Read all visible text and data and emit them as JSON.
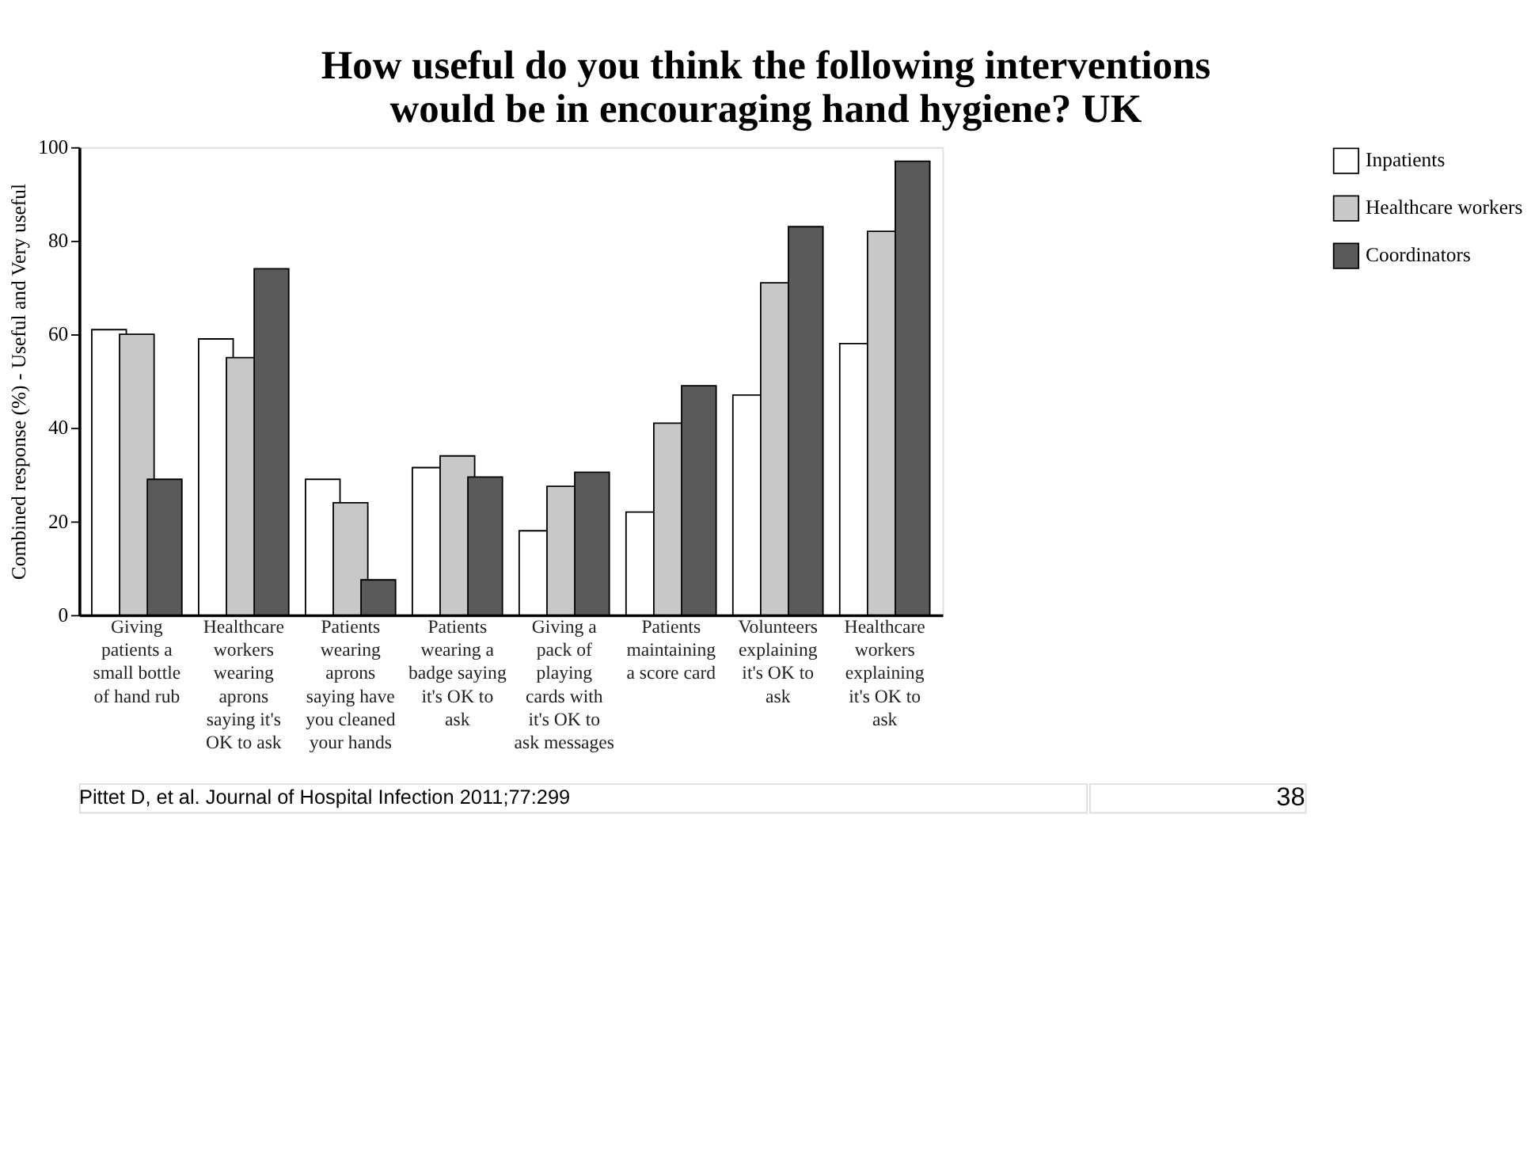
{
  "chart_data": {
    "type": "bar",
    "title": [
      "How useful do you think the following interventions",
      "would be in encouraging hand hygiene? UK"
    ],
    "ylabel": "Combined response (%) - Useful and Very useful",
    "categories": [
      "Giving patients a small bottle of hand rub",
      "Healthcare workers wearing aprons saying it's OK to ask",
      "Patients wearing aprons saying have you cleaned your hands",
      "Patients wearing a badge saying it's OK to ask",
      "Giving a pack of playing cards with it's OK to ask messages",
      "Patients maintaining a score card",
      "Volunteers explaining it's OK to ask",
      "Healthcare workers explaining it's OK to ask"
    ],
    "series": [
      {
        "name": "Inpatients",
        "color": "#ffffff",
        "values": [
          61,
          59,
          29,
          31.5,
          18,
          22,
          47,
          58
        ]
      },
      {
        "name": "Healthcare workers",
        "color": "#c8c8c8",
        "values": [
          60,
          55,
          24,
          34,
          27.5,
          41,
          71,
          82
        ]
      },
      {
        "name": "Coordinators",
        "color": "#5a5a5a",
        "values": [
          29,
          74,
          7.5,
          29.5,
          30.5,
          49,
          83,
          97
        ]
      }
    ],
    "ylim": [
      0,
      100
    ],
    "yticks": [
      0,
      20,
      40,
      60,
      80,
      100
    ],
    "grid": false,
    "legend": "right",
    "annotations": [
      "Pittet D, et al. Journal of Hospital Infection 2011;77:299",
      "38"
    ]
  }
}
